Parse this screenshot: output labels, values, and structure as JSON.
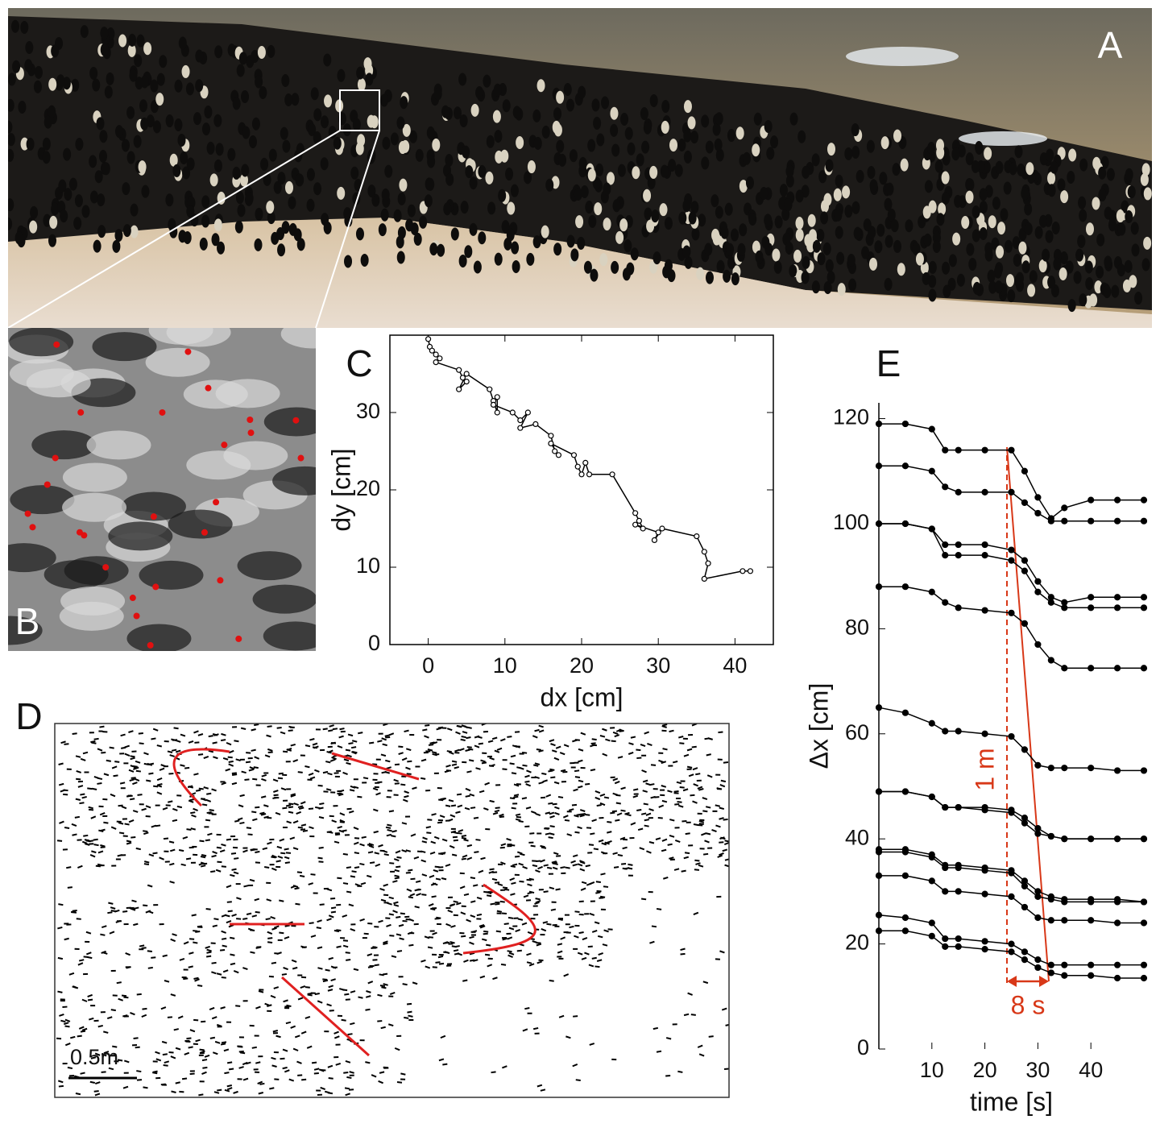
{
  "panels": {
    "A": "A",
    "B": "B",
    "C": "C",
    "D": "D",
    "E": "E"
  },
  "scale_bar": "0.5m",
  "chart_data": [
    {
      "type": "line",
      "xlabel": "dx [cm]",
      "ylabel": "dy [cm]",
      "color": "#000000",
      "x": [
        0,
        0.2,
        0.5,
        1,
        1.5,
        1,
        4,
        4.5,
        5,
        4,
        5,
        8,
        8.5,
        9,
        9,
        8.5,
        11,
        12,
        13,
        12,
        14,
        16,
        16.5,
        17,
        16,
        19,
        19.5,
        20,
        20.5,
        21,
        24,
        27,
        27.5,
        28,
        27,
        30,
        29.5,
        30.5,
        35,
        36,
        36.5,
        36,
        41,
        42
      ],
      "values": [
        39.5,
        38.5,
        38,
        37.5,
        37,
        36.5,
        35.5,
        34.5,
        34,
        33,
        35,
        33,
        31.5,
        30,
        32,
        31,
        30,
        29,
        30,
        28,
        28.5,
        27,
        25,
        24.5,
        26,
        24.5,
        23,
        22,
        23.5,
        22,
        22,
        17,
        16,
        15,
        15.5,
        14.5,
        13.5,
        15,
        14,
        12,
        10.5,
        8.5,
        9.5,
        9.5
      ],
      "xlim": [
        -5,
        45
      ],
      "ylim": [
        0,
        40
      ],
      "xticks": [
        0,
        10,
        20,
        30,
        40
      ],
      "yticks": [
        0,
        10,
        20,
        30
      ]
    },
    {
      "type": "line",
      "xlabel": "time [s]",
      "ylabel": "Δx [cm]",
      "color": "#000000",
      "annotations": [
        "1 m",
        "8 s"
      ],
      "x": [
        0,
        5,
        10,
        12.5,
        15,
        20,
        25,
        27.5,
        30,
        32.5,
        35,
        40,
        45,
        50
      ],
      "series": [
        {
          "values": [
            119,
            119,
            118,
            114,
            114,
            114,
            114,
            110,
            105,
            101,
            103,
            104.5,
            104.5,
            104.5
          ]
        },
        {
          "values": [
            111,
            111,
            110,
            107,
            106,
            106,
            106,
            104,
            102,
            100.5,
            100.5,
            100.5,
            100.5,
            100.5
          ]
        },
        {
          "values": [
            100,
            100,
            99,
            96,
            96,
            96,
            95,
            93,
            89,
            86,
            85,
            86,
            86,
            86
          ]
        },
        {
          "values": [
            100,
            100,
            99,
            94,
            94,
            94,
            93,
            91,
            87,
            85,
            84,
            84,
            84,
            84
          ]
        },
        {
          "values": [
            88,
            88,
            87,
            85,
            84,
            83.5,
            83,
            81,
            77,
            74,
            72.5,
            72.5,
            72.5,
            72.5
          ]
        },
        {
          "values": [
            65,
            64,
            62,
            60.5,
            60.5,
            60,
            59.5,
            57,
            54,
            53.5,
            53.5,
            53.5,
            53,
            53
          ]
        },
        {
          "values": [
            49,
            49,
            48,
            46,
            46,
            45.5,
            45,
            43,
            41,
            40.5,
            40,
            40,
            40,
            40
          ]
        },
        {
          "values": [
            49,
            49,
            48,
            46,
            46,
            46,
            45.5,
            44,
            42,
            40.5,
            40,
            40,
            40,
            40
          ]
        },
        {
          "values": [
            38,
            38,
            37,
            35,
            35,
            34.5,
            34,
            32,
            30,
            29,
            28.5,
            28.5,
            28.5,
            28
          ]
        },
        {
          "values": [
            37.5,
            37.5,
            36.5,
            34.5,
            34.5,
            34,
            33.5,
            31,
            29,
            28.5,
            28,
            28,
            28,
            28
          ]
        },
        {
          "values": [
            33,
            33,
            32,
            30,
            30,
            29.5,
            29,
            27,
            25,
            24.5,
            24.5,
            24.5,
            24,
            24
          ]
        },
        {
          "values": [
            25.5,
            25,
            24,
            21,
            21,
            20.5,
            20,
            18.5,
            17,
            16,
            16,
            16,
            16,
            16
          ]
        },
        {
          "values": [
            22.5,
            22.5,
            21.5,
            19.5,
            19.5,
            19,
            18.5,
            17,
            15.5,
            14.5,
            14,
            14,
            13.5,
            13.5
          ]
        }
      ],
      "xlim": [
        0,
        50
      ],
      "ylim": [
        0,
        123
      ],
      "xticks": [
        10,
        20,
        30,
        40
      ],
      "yticks": [
        0,
        20,
        40,
        60,
        80,
        100,
        120
      ]
    }
  ]
}
